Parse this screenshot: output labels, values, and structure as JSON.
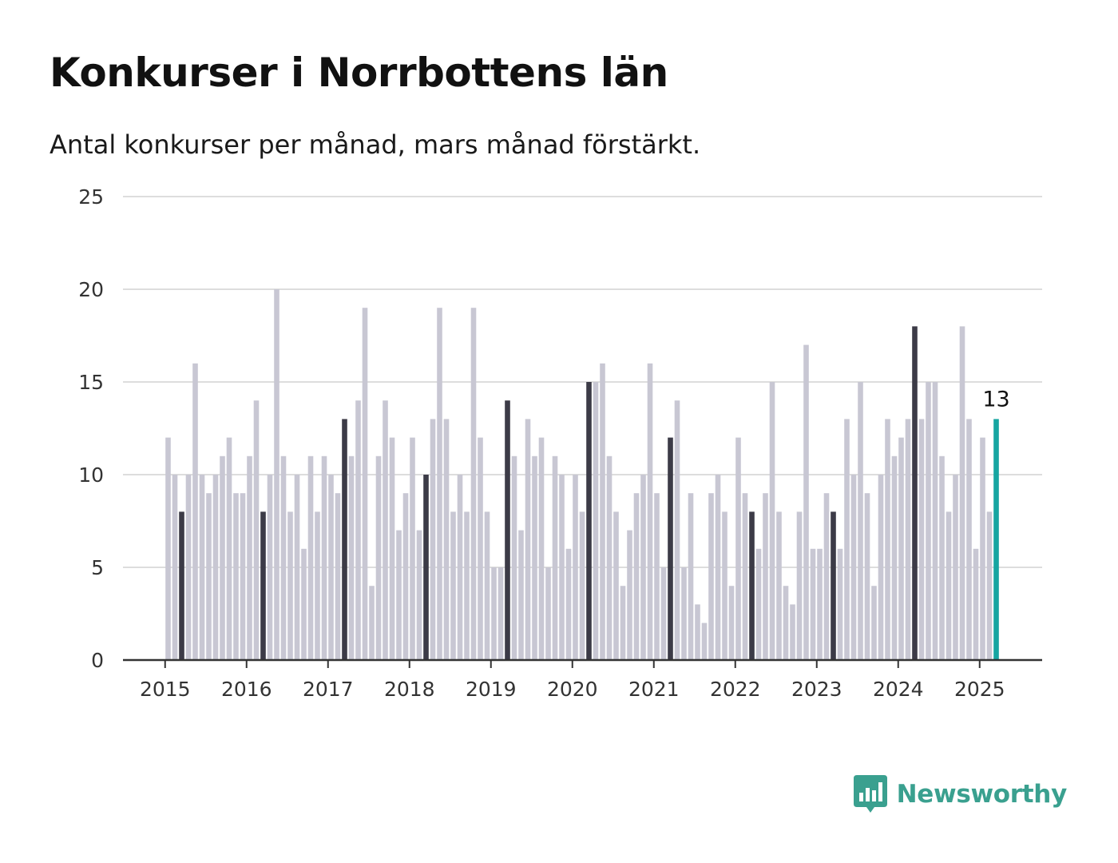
{
  "header": {
    "title": "Konkurser i Norrbottens län",
    "subtitle": "Antal konkurser per månad, mars månad förstärkt."
  },
  "brand": {
    "name": "Newsworthy",
    "icon": "bar-chart-speech-bubble-icon"
  },
  "colors": {
    "bar": "#c8c7d3",
    "highlight": "#3c3b47",
    "latest": "#16a5a1",
    "grid": "#dddddd",
    "axis": "#333333",
    "brand": "#3aa08f"
  },
  "chart_data": {
    "type": "bar",
    "title": "Konkurser i Norrbottens län",
    "subtitle": "Antal konkurser per månad, mars månad förstärkt.",
    "xlabel": "",
    "ylabel": "",
    "ylim": [
      0,
      25
    ],
    "yticks": [
      0,
      5,
      10,
      15,
      20,
      25
    ],
    "xtick_labels": [
      "2015",
      "2016",
      "2017",
      "2018",
      "2019",
      "2020",
      "2021",
      "2022",
      "2023",
      "2024",
      "2025"
    ],
    "start": "2015-01",
    "highlight_month": "mars",
    "grid": true,
    "annotation": {
      "month": "2025-03",
      "text": "13"
    },
    "series": [
      {
        "values": [
          12,
          10,
          8,
          10,
          16,
          10,
          9,
          10,
          11,
          12,
          9,
          9,
          11,
          14,
          8,
          10,
          20,
          11,
          8,
          10,
          6,
          11,
          8,
          11,
          10,
          9,
          13,
          11,
          14,
          19,
          4,
          11,
          14,
          12,
          7,
          9,
          12,
          7,
          10,
          13,
          19,
          13,
          8,
          10,
          8,
          19,
          12,
          8,
          5,
          5,
          14,
          11,
          7,
          13,
          11,
          12,
          5,
          11,
          10,
          6,
          10,
          8,
          15,
          15,
          16,
          11,
          8,
          4,
          7,
          9,
          10,
          16,
          9,
          5,
          12,
          14,
          5,
          9,
          3,
          2,
          9,
          10,
          8,
          4,
          12,
          9,
          8,
          6,
          9,
          15,
          8,
          4,
          3,
          8,
          17,
          6,
          6,
          9,
          8,
          6,
          13,
          10,
          15,
          9,
          4,
          10,
          13,
          11,
          12,
          13,
          18,
          13,
          15,
          15,
          11,
          8,
          10,
          18,
          13,
          6,
          12,
          8,
          13
        ]
      }
    ]
  }
}
